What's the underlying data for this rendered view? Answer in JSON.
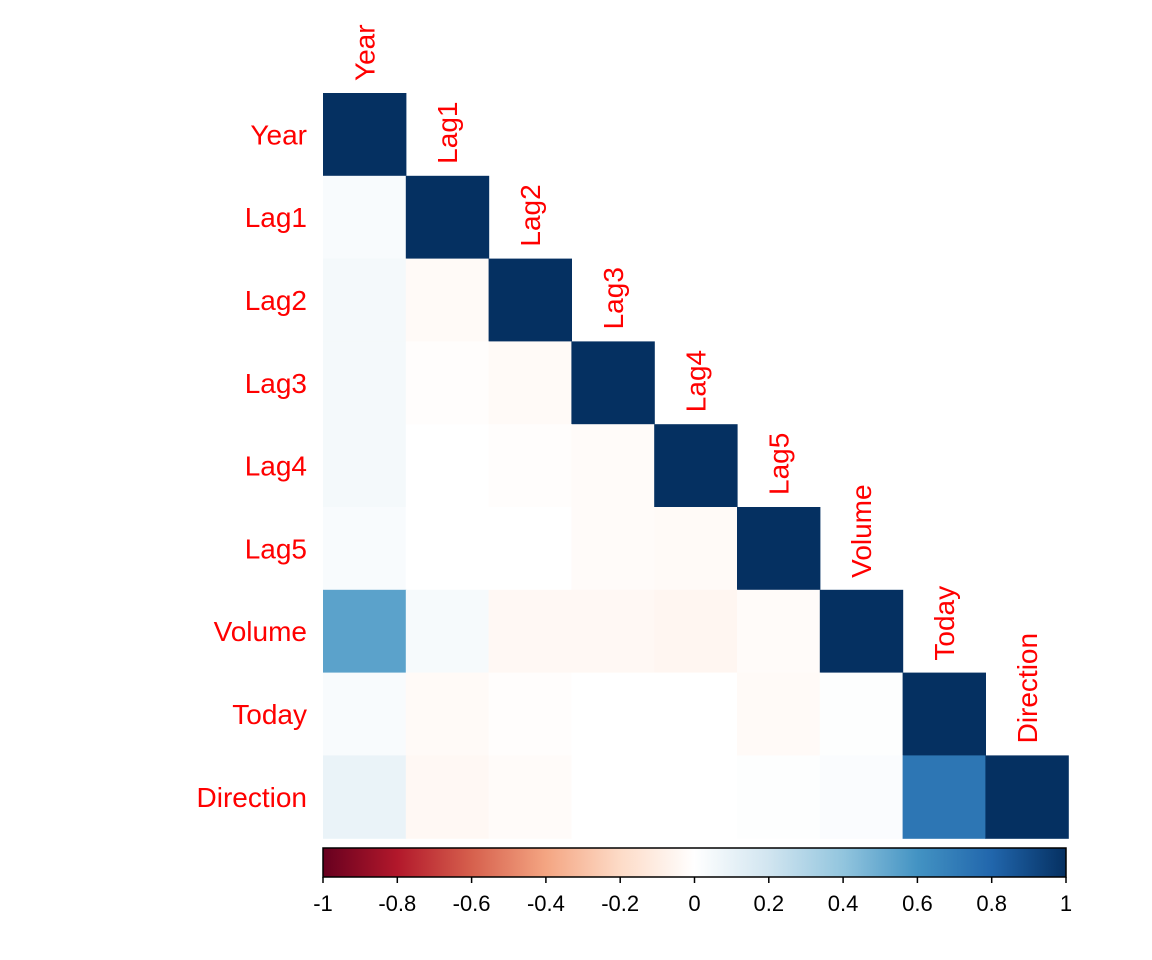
{
  "chart_data": {
    "type": "heatmap",
    "layout": "lower-triangle",
    "variables": [
      "Year",
      "Lag1",
      "Lag2",
      "Lag3",
      "Lag4",
      "Lag5",
      "Volume",
      "Today",
      "Direction"
    ],
    "matrix": [
      [
        1.0,
        0.03,
        0.05,
        0.05,
        0.05,
        0.03,
        0.54,
        0.03,
        0.09
      ],
      [
        0.03,
        1.0,
        -0.03,
        -0.01,
        0.0,
        0.0,
        0.04,
        -0.03,
        -0.04
      ],
      [
        0.05,
        -0.03,
        1.0,
        -0.03,
        -0.01,
        0.0,
        -0.04,
        -0.01,
        -0.02
      ],
      [
        0.05,
        -0.01,
        -0.03,
        1.0,
        -0.02,
        -0.02,
        -0.04,
        0.0,
        0.0
      ],
      [
        0.05,
        0.0,
        -0.01,
        -0.02,
        1.0,
        -0.03,
        -0.05,
        0.0,
        0.0
      ],
      [
        0.03,
        0.0,
        0.0,
        -0.02,
        -0.03,
        1.0,
        -0.02,
        -0.03,
        0.01
      ],
      [
        0.54,
        0.04,
        -0.04,
        -0.04,
        -0.05,
        -0.02,
        1.0,
        0.01,
        0.02
      ],
      [
        0.03,
        -0.03,
        -0.01,
        0.0,
        0.0,
        -0.03,
        0.01,
        1.0,
        0.73
      ],
      [
        0.09,
        -0.04,
        -0.02,
        0.0,
        0.0,
        0.01,
        0.02,
        0.73,
        1.0
      ]
    ],
    "color_scale": {
      "min": -1,
      "max": 1,
      "stops": [
        {
          "value": -1.0,
          "color": "#67001f"
        },
        {
          "value": -0.8,
          "color": "#b2182b"
        },
        {
          "value": -0.6,
          "color": "#d6604d"
        },
        {
          "value": -0.4,
          "color": "#f4a582"
        },
        {
          "value": -0.2,
          "color": "#fddbc7"
        },
        {
          "value": 0.0,
          "color": "#ffffff"
        },
        {
          "value": 0.2,
          "color": "#d1e5f0"
        },
        {
          "value": 0.4,
          "color": "#92c5de"
        },
        {
          "value": 0.6,
          "color": "#4393c3"
        },
        {
          "value": 0.8,
          "color": "#2166ac"
        },
        {
          "value": 1.0,
          "color": "#053061"
        }
      ],
      "tick_labels": [
        "-1",
        "-0.8",
        "-0.6",
        "-0.4",
        "-0.2",
        "0",
        "0.2",
        "0.4",
        "0.6",
        "0.8",
        "1"
      ]
    },
    "label_color": "#ff0000"
  }
}
